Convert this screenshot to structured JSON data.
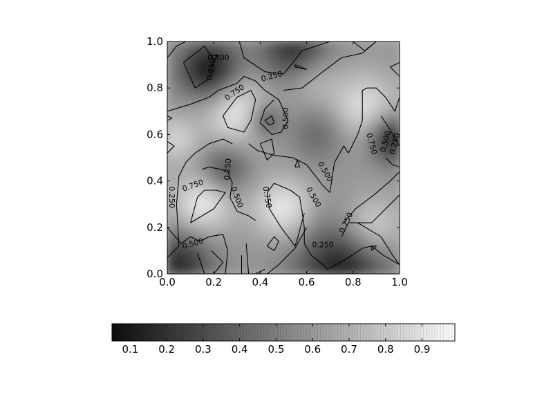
{
  "chart_data": {
    "type": "heatmap",
    "colormap": "gray",
    "x_range": [
      0.0,
      1.0
    ],
    "y_range": [
      0.0,
      1.0
    ],
    "x_ticks": [
      "0.0",
      "0.2",
      "0.4",
      "0.6",
      "0.8",
      "1.0"
    ],
    "y_ticks": [
      "0.0",
      "0.2",
      "0.4",
      "0.6",
      "0.8",
      "1.0"
    ],
    "grid": false,
    "contour_levels": [
      "0.250",
      "0.500",
      "0.750"
    ],
    "contour_labels": [
      {
        "text": "0.500",
        "x": 0.22,
        "y": 0.93,
        "angle": 0
      },
      {
        "text": "0.250",
        "x": 0.19,
        "y": 0.88,
        "angle": -80
      },
      {
        "text": "0.250",
        "x": 0.45,
        "y": 0.85,
        "angle": -15
      },
      {
        "text": "0.750",
        "x": 0.29,
        "y": 0.78,
        "angle": -35
      },
      {
        "text": "0.500",
        "x": 0.51,
        "y": 0.67,
        "angle": -90
      },
      {
        "text": "0.750",
        "x": 0.88,
        "y": 0.56,
        "angle": 75
      },
      {
        "text": "0.500",
        "x": 0.94,
        "y": 0.57,
        "angle": -75
      },
      {
        "text": "0.250",
        "x": 0.98,
        "y": 0.56,
        "angle": -75
      },
      {
        "text": "0.250",
        "x": 0.26,
        "y": 0.45,
        "angle": -85
      },
      {
        "text": "0.500",
        "x": 0.68,
        "y": 0.44,
        "angle": 60
      },
      {
        "text": "0.750",
        "x": 0.11,
        "y": 0.38,
        "angle": -20
      },
      {
        "text": "0.500",
        "x": 0.3,
        "y": 0.33,
        "angle": 70
      },
      {
        "text": "0.750",
        "x": 0.43,
        "y": 0.33,
        "angle": 80
      },
      {
        "text": "0.500",
        "x": 0.63,
        "y": 0.33,
        "angle": 60
      },
      {
        "text": "0.250",
        "x": 0.02,
        "y": 0.33,
        "angle": 90
      },
      {
        "text": "0.750",
        "x": 0.77,
        "y": 0.22,
        "angle": -65
      },
      {
        "text": "0.500",
        "x": 0.11,
        "y": 0.13,
        "angle": -15
      },
      {
        "text": "0.250",
        "x": 0.67,
        "y": 0.125,
        "angle": 0
      }
    ],
    "colorbar": {
      "range": [
        0.05,
        0.99
      ],
      "ticks": [
        "0.1",
        "0.2",
        "0.3",
        "0.4",
        "0.5",
        "0.6",
        "0.7",
        "0.8",
        "0.9"
      ],
      "orientation": "horizontal"
    }
  }
}
